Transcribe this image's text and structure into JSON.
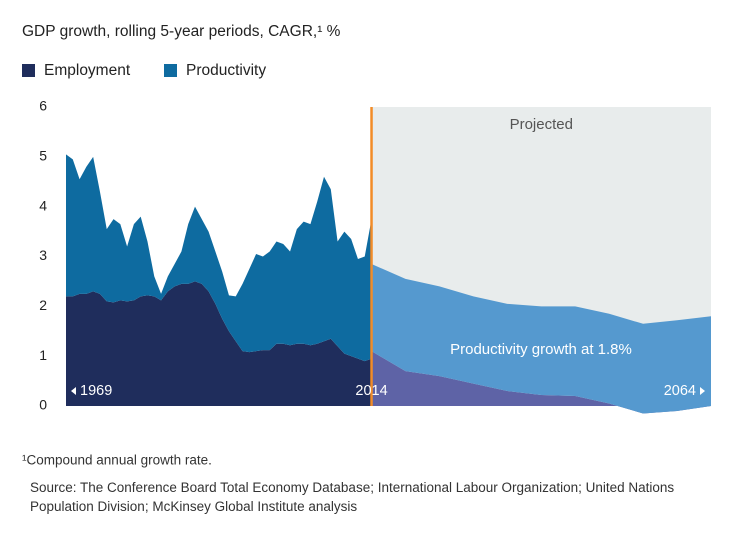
{
  "chart_data": {
    "type": "area",
    "title": "GDP growth, rolling 5-year periods, CAGR,¹ %",
    "footnote": "¹Compound annual growth rate.",
    "source": "Source: The Conference Board Total Economy Database; International Labour Organization; United Nations Population Division; McKinsey Global Institute analysis",
    "projection_label": "Projected",
    "annotation": "Productivity growth at 1.8%",
    "projection_background": "#e8ecec",
    "divider_color": "#f28c28",
    "x": [
      1969,
      1970,
      1971,
      1972,
      1973,
      1974,
      1975,
      1976,
      1977,
      1978,
      1979,
      1980,
      1981,
      1982,
      1983,
      1984,
      1985,
      1986,
      1987,
      1988,
      1989,
      1990,
      1991,
      1992,
      1993,
      1994,
      1995,
      1996,
      1997,
      1998,
      1999,
      2000,
      2001,
      2002,
      2003,
      2004,
      2005,
      2006,
      2007,
      2008,
      2009,
      2010,
      2011,
      2012,
      2013,
      2014
    ],
    "projected_x": [
      2014,
      2019,
      2024,
      2029,
      2034,
      2039,
      2044,
      2049,
      2054,
      2059,
      2064
    ],
    "series": [
      {
        "name": "Employment",
        "color": "#1f2d5c",
        "projected_color": "#5e63a6",
        "values": [
          2.2,
          2.2,
          2.25,
          2.25,
          2.3,
          2.25,
          2.1,
          2.08,
          2.12,
          2.1,
          2.12,
          2.2,
          2.22,
          2.2,
          2.12,
          2.3,
          2.4,
          2.45,
          2.45,
          2.5,
          2.45,
          2.3,
          2.05,
          1.75,
          1.5,
          1.3,
          1.1,
          1.08,
          1.1,
          1.12,
          1.12,
          1.25,
          1.25,
          1.22,
          1.25,
          1.25,
          1.22,
          1.25,
          1.3,
          1.35,
          1.2,
          1.05,
          1.0,
          0.95,
          0.9,
          0.95
        ],
        "projected_values": [
          1.1,
          0.7,
          0.6,
          0.45,
          0.3,
          0.22,
          0.2,
          0.05,
          -0.15,
          -0.1,
          0.0
        ]
      },
      {
        "name": "Productivity",
        "color": "#0e6ba0",
        "projected_color": "#5599cf",
        "values": [
          2.85,
          2.75,
          2.3,
          2.55,
          2.7,
          2.05,
          1.45,
          1.67,
          1.53,
          1.1,
          1.53,
          1.6,
          1.08,
          0.4,
          0.13,
          0.3,
          0.45,
          0.65,
          1.2,
          1.5,
          1.3,
          1.2,
          1.05,
          0.95,
          0.72,
          0.9,
          1.35,
          1.67,
          1.95,
          1.88,
          1.98,
          2.05,
          2.0,
          1.88,
          2.3,
          2.45,
          2.43,
          2.85,
          3.3,
          3.0,
          2.1,
          2.45,
          2.35,
          2.0,
          2.1,
          2.8
        ],
        "projected_values": [
          1.75,
          1.85,
          1.8,
          1.75,
          1.75,
          1.78,
          1.8,
          1.8,
          1.8,
          1.82,
          1.8
        ]
      }
    ],
    "xlim": [
      1969,
      2064
    ],
    "xticks": [
      1969,
      2014,
      2064
    ],
    "ylim": [
      0,
      6
    ],
    "yticks": [
      0,
      1,
      2,
      3,
      4,
      5,
      6
    ],
    "grid": false
  }
}
